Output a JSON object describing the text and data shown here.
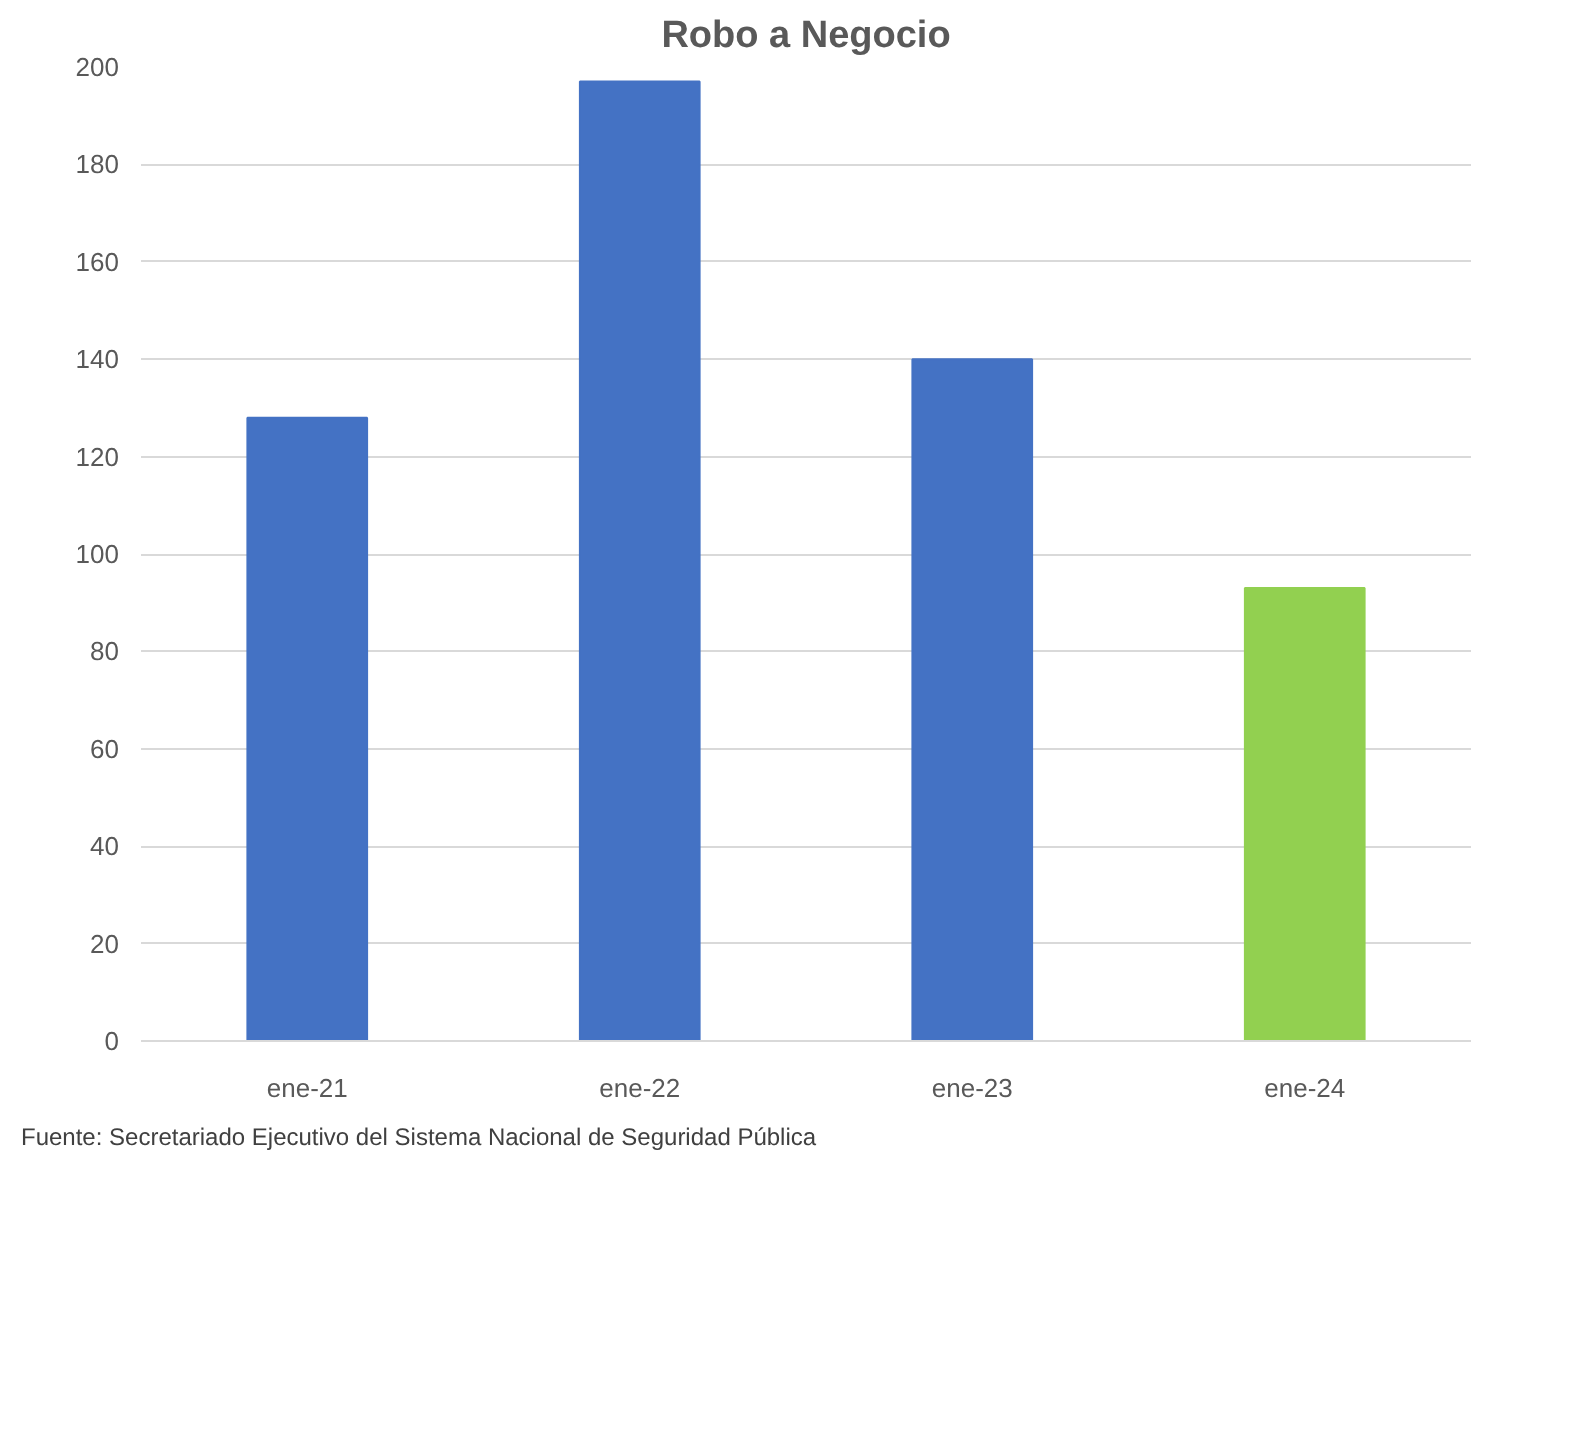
{
  "chart_data": {
    "type": "bar",
    "title": "Robo a Negocio",
    "categories": [
      "ene-21",
      "ene-22",
      "ene-23",
      "ene-24"
    ],
    "values": [
      128,
      197,
      140,
      93
    ],
    "colors": [
      "#4472c4",
      "#4472c4",
      "#4472c4",
      "#92d050"
    ],
    "ylim": [
      0,
      200
    ],
    "yticks": [
      0,
      20,
      40,
      60,
      80,
      100,
      120,
      140,
      160,
      180,
      200
    ],
    "grid": "y",
    "annotations": [
      "Fuente: Secretariado Ejecutivo del Sistema Nacional de Seguridad Pública"
    ]
  }
}
